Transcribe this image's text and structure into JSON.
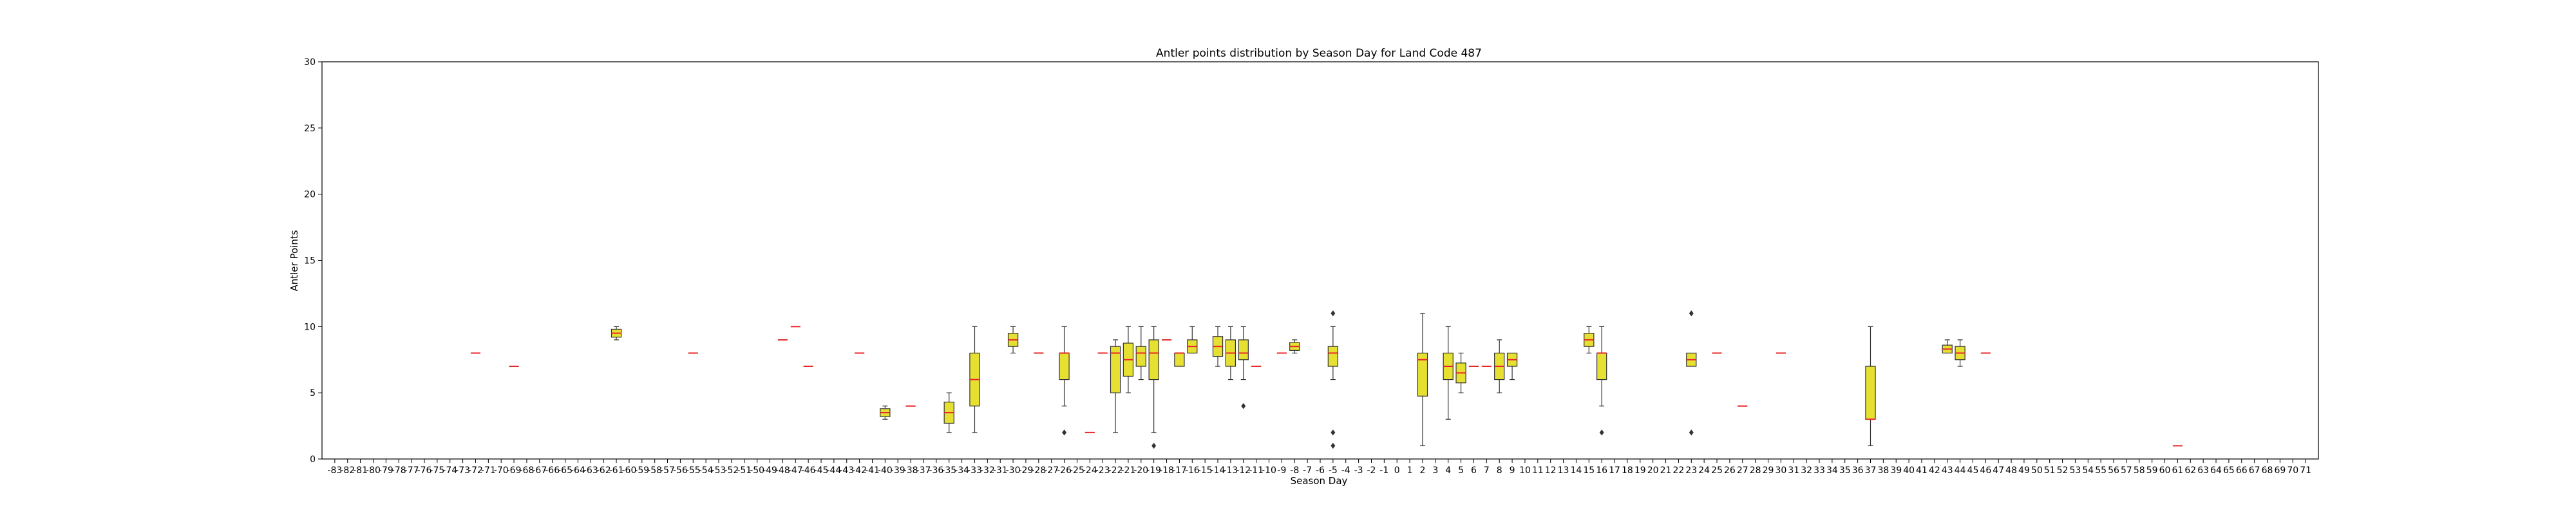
{
  "chart_data": {
    "type": "box",
    "title": "Antler points distribution by Season Day for Land Code 487",
    "xlabel": "Season Day",
    "ylabel": "Antler Points",
    "ylim": [
      0,
      30
    ],
    "yticks": [
      0,
      5,
      10,
      15,
      20,
      25,
      30
    ],
    "x_range": [
      -83,
      71
    ],
    "grid": false,
    "colors": {
      "box_fill": "#e6e032",
      "box_edge": "#333333",
      "median": "#e8262a",
      "flier": "#333333",
      "axis": "#000000"
    },
    "boxes": [
      {
        "day": -72,
        "q1": 8,
        "median": 8,
        "q3": 8,
        "wlo": 8,
        "whi": 8
      },
      {
        "day": -69,
        "q1": 7,
        "median": 7,
        "q3": 7,
        "wlo": 7,
        "whi": 7
      },
      {
        "day": -61,
        "q1": 9.2,
        "median": 9.5,
        "q3": 9.8,
        "wlo": 9,
        "whi": 10
      },
      {
        "day": -55,
        "q1": 8,
        "median": 8,
        "q3": 8,
        "wlo": 8,
        "whi": 8
      },
      {
        "day": -48,
        "q1": 9,
        "median": 9,
        "q3": 9,
        "wlo": 9,
        "whi": 9
      },
      {
        "day": -47,
        "q1": 10,
        "median": 10,
        "q3": 10,
        "wlo": 10,
        "whi": 10
      },
      {
        "day": -46,
        "q1": 7,
        "median": 7,
        "q3": 7,
        "wlo": 7,
        "whi": 7
      },
      {
        "day": -42,
        "q1": 8,
        "median": 8,
        "q3": 8,
        "wlo": 8,
        "whi": 8
      },
      {
        "day": -40,
        "q1": 3.2,
        "median": 3.5,
        "q3": 3.8,
        "wlo": 3,
        "whi": 4
      },
      {
        "day": -38,
        "q1": 4,
        "median": 4,
        "q3": 4,
        "wlo": 4,
        "whi": 4
      },
      {
        "day": -35,
        "q1": 2.7,
        "median": 3.5,
        "q3": 4.3,
        "wlo": 2,
        "whi": 5
      },
      {
        "day": -33,
        "q1": 4,
        "median": 6,
        "q3": 8,
        "wlo": 2,
        "whi": 10
      },
      {
        "day": -30,
        "q1": 8.5,
        "median": 9,
        "q3": 9.5,
        "wlo": 8,
        "whi": 10
      },
      {
        "day": -28,
        "q1": 8,
        "median": 8,
        "q3": 8,
        "wlo": 8,
        "whi": 8
      },
      {
        "day": -26,
        "q1": 6,
        "median": 8,
        "q3": 8,
        "wlo": 4,
        "whi": 10,
        "fliers": [
          2
        ]
      },
      {
        "day": -24,
        "q1": 2,
        "median": 2,
        "q3": 2,
        "wlo": 2,
        "whi": 2
      },
      {
        "day": -23,
        "q1": 8,
        "median": 8,
        "q3": 8,
        "wlo": 8,
        "whi": 8
      },
      {
        "day": -22,
        "q1": 5,
        "median": 8,
        "q3": 8.5,
        "wlo": 2,
        "whi": 9
      },
      {
        "day": -21,
        "q1": 6.25,
        "median": 7.5,
        "q3": 8.75,
        "wlo": 5,
        "whi": 10
      },
      {
        "day": -20,
        "q1": 7,
        "median": 8,
        "q3": 8.5,
        "wlo": 6,
        "whi": 10
      },
      {
        "day": -19,
        "q1": 6,
        "median": 8,
        "q3": 9,
        "wlo": 2,
        "whi": 10,
        "fliers": [
          1
        ]
      },
      {
        "day": -18,
        "q1": 9,
        "median": 9,
        "q3": 9,
        "wlo": 9,
        "whi": 9
      },
      {
        "day": -17,
        "q1": 7,
        "median": 8,
        "q3": 8,
        "wlo": 7,
        "whi": 8
      },
      {
        "day": -16,
        "q1": 8,
        "median": 8.5,
        "q3": 9,
        "wlo": 8,
        "whi": 10
      },
      {
        "day": -14,
        "q1": 7.75,
        "median": 8.5,
        "q3": 9.25,
        "wlo": 7,
        "whi": 10
      },
      {
        "day": -13,
        "q1": 7,
        "median": 8,
        "q3": 9,
        "wlo": 6,
        "whi": 10
      },
      {
        "day": -12,
        "q1": 7.5,
        "median": 8,
        "q3": 9,
        "wlo": 6,
        "whi": 10,
        "fliers": [
          4
        ]
      },
      {
        "day": -11,
        "q1": 7,
        "median": 7,
        "q3": 7,
        "wlo": 7,
        "whi": 7
      },
      {
        "day": -9,
        "q1": 8,
        "median": 8,
        "q3": 8,
        "wlo": 8,
        "whi": 8
      },
      {
        "day": -8,
        "q1": 8.2,
        "median": 8.5,
        "q3": 8.8,
        "wlo": 8,
        "whi": 9
      },
      {
        "day": -5,
        "q1": 7,
        "median": 8,
        "q3": 8.5,
        "wlo": 6,
        "whi": 10,
        "fliers": [
          11,
          2,
          1
        ]
      },
      {
        "day": 2,
        "q1": 4.75,
        "median": 7.5,
        "q3": 8,
        "wlo": 1,
        "whi": 11
      },
      {
        "day": 4,
        "q1": 6,
        "median": 7,
        "q3": 8,
        "wlo": 3,
        "whi": 10
      },
      {
        "day": 5,
        "q1": 5.75,
        "median": 6.5,
        "q3": 7.25,
        "wlo": 5,
        "whi": 8
      },
      {
        "day": 6,
        "q1": 7,
        "median": 7,
        "q3": 7,
        "wlo": 7,
        "whi": 7
      },
      {
        "day": 7,
        "q1": 7,
        "median": 7,
        "q3": 7,
        "wlo": 7,
        "whi": 7
      },
      {
        "day": 8,
        "q1": 6,
        "median": 7,
        "q3": 8,
        "wlo": 5,
        "whi": 9
      },
      {
        "day": 9,
        "q1": 7,
        "median": 7.5,
        "q3": 8,
        "wlo": 6,
        "whi": 8
      },
      {
        "day": 15,
        "q1": 8.5,
        "median": 9,
        "q3": 9.5,
        "wlo": 8,
        "whi": 10
      },
      {
        "day": 16,
        "q1": 6,
        "median": 8,
        "q3": 8,
        "wlo": 4,
        "whi": 10,
        "fliers": [
          2
        ]
      },
      {
        "day": 23,
        "q1": 7,
        "median": 7.5,
        "q3": 8,
        "wlo": 7,
        "whi": 8,
        "fliers": [
          11,
          2
        ]
      },
      {
        "day": 25,
        "q1": 8,
        "median": 8,
        "q3": 8,
        "wlo": 8,
        "whi": 8
      },
      {
        "day": 27,
        "q1": 4,
        "median": 4,
        "q3": 4,
        "wlo": 4,
        "whi": 4
      },
      {
        "day": 30,
        "q1": 8,
        "median": 8,
        "q3": 8,
        "wlo": 8,
        "whi": 8
      },
      {
        "day": 37,
        "q1": 3,
        "median": 3,
        "q3": 7,
        "wlo": 1,
        "whi": 10
      },
      {
        "day": 43,
        "q1": 8,
        "median": 8.3,
        "q3": 8.6,
        "wlo": 8,
        "whi": 9
      },
      {
        "day": 44,
        "q1": 7.5,
        "median": 8,
        "q3": 8.5,
        "wlo": 7,
        "whi": 9
      },
      {
        "day": 46,
        "q1": 8,
        "median": 8,
        "q3": 8,
        "wlo": 8,
        "whi": 8
      },
      {
        "day": 61,
        "q1": 1,
        "median": 1,
        "q3": 1,
        "wlo": 1,
        "whi": 1
      }
    ]
  }
}
